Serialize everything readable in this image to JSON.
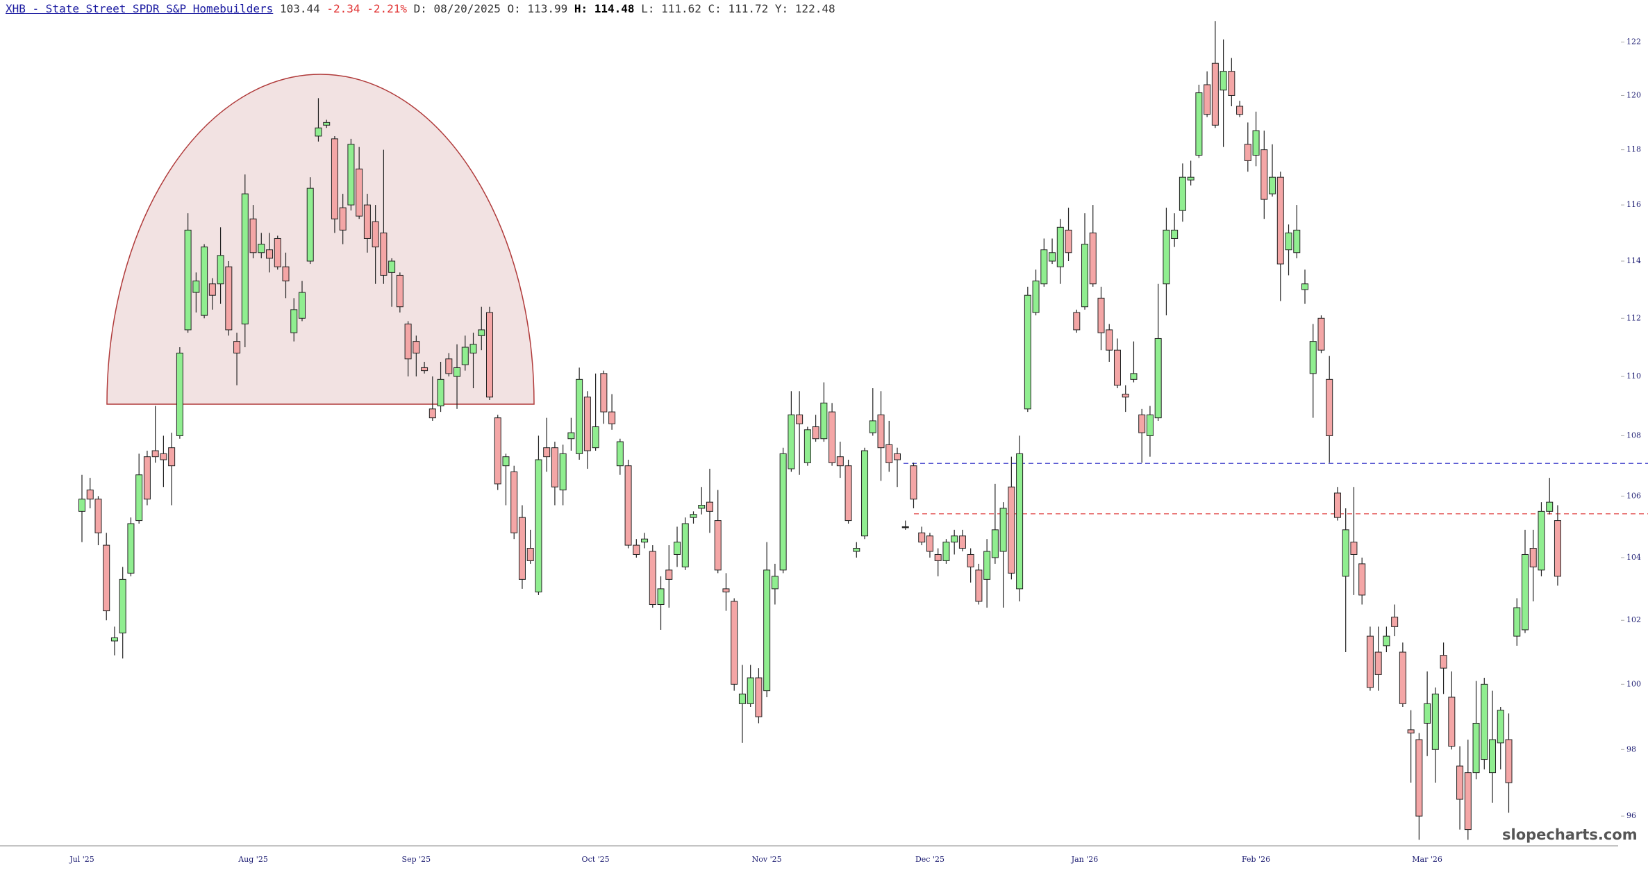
{
  "chart_data": {
    "type": "candlestick",
    "title": "XHB - State Street SPDR S&P Homebuilders",
    "quote": {
      "last": "103.44",
      "change": "-2.34",
      "change_pct": "-2.21%",
      "fields": [
        {
          "label": "D:",
          "value": "08/20/2025"
        },
        {
          "label": "O:",
          "value": "113.99"
        },
        {
          "label": "H:",
          "value": "114.48"
        },
        {
          "label": "L:",
          "value": "111.62"
        },
        {
          "label": "C:",
          "value": "111.72"
        },
        {
          "label": "Y:",
          "value": "122.48"
        }
      ]
    },
    "watermark": "slopecharts.com",
    "log_scale": true,
    "grid": false,
    "up_color": "#90ee90",
    "down_color": "#f4a6a6",
    "ylim": [
      95.12,
      123.6
    ],
    "yticks": [
      96,
      98,
      100,
      102,
      104,
      106,
      108,
      110,
      112,
      114,
      116,
      118,
      120,
      122
    ],
    "levels": [
      {
        "value": 107.08,
        "color": "#4444cc"
      },
      {
        "value": 105.42,
        "color": "#e04444"
      }
    ],
    "categories": [
      "Jul '25",
      null,
      null,
      null,
      null,
      null,
      null,
      null,
      null,
      null,
      null,
      null,
      null,
      null,
      null,
      null,
      null,
      null,
      null,
      null,
      null,
      "Aug '25",
      null,
      null,
      null,
      null,
      null,
      null,
      null,
      null,
      null,
      null,
      null,
      null,
      null,
      null,
      null,
      null,
      null,
      null,
      null,
      "Sep '25",
      null,
      null,
      null,
      null,
      null,
      null,
      null,
      null,
      null,
      null,
      null,
      null,
      null,
      null,
      null,
      null,
      null,
      null,
      null,
      null,
      null,
      "Oct '25",
      null,
      null,
      null,
      null,
      null,
      null,
      null,
      null,
      null,
      null,
      null,
      null,
      null,
      null,
      null,
      null,
      null,
      null,
      null,
      null,
      "Nov '25",
      null,
      null,
      null,
      null,
      null,
      null,
      null,
      null,
      null,
      null,
      null,
      null,
      null,
      null,
      null,
      null,
      null,
      null,
      null,
      "Dec '25",
      null,
      null,
      null,
      null,
      null,
      null,
      null,
      null,
      null,
      null,
      null,
      null,
      null,
      null,
      null,
      null,
      null,
      null,
      "Jan '26",
      null,
      null,
      null,
      null,
      null,
      null,
      null,
      null,
      null,
      null,
      null,
      null,
      null,
      null,
      null,
      null,
      null,
      null,
      null,
      null,
      "Feb '26",
      null,
      null,
      null,
      null,
      null,
      null,
      null,
      null,
      null,
      null,
      null,
      null,
      null,
      null,
      null,
      null,
      null,
      null,
      null,
      null,
      "Mar '26",
      null,
      null,
      null,
      null,
      null,
      null,
      null,
      null,
      null,
      null,
      null,
      null,
      null,
      null,
      null,
      null
    ],
    "open": [
      105.5,
      106.2,
      105.9,
      104.4,
      101.35,
      101.6,
      103.5,
      105.2,
      107.3,
      107.5,
      107.4,
      107.6,
      108.0,
      111.6,
      112.9,
      112.1,
      113.2,
      113.2,
      113.8,
      111.2,
      111.8,
      115.5,
      114.3,
      114.4,
      114.8,
      113.8,
      111.5,
      112.0,
      114.0,
      118.5,
      118.9,
      118.4,
      115.9,
      116.0,
      117.3,
      116.0,
      115.4,
      115.0,
      113.6,
      113.5,
      111.8,
      111.2,
      110.3,
      108.9,
      109.0,
      110.6,
      110.0,
      110.4,
      110.8,
      111.4,
      112.2,
      108.6,
      107.0,
      106.8,
      105.3,
      104.3,
      102.9,
      107.6,
      107.6,
      106.2,
      107.9,
      107.4,
      109.3,
      107.6,
      110.1,
      108.8,
      107.0,
      107.0,
      104.4,
      104.5,
      104.2,
      102.5,
      103.6,
      104.1,
      103.7,
      105.3,
      105.6,
      105.8,
      105.2,
      103.0,
      102.6,
      99.4,
      99.4,
      100.2,
      99.8,
      103.0,
      103.6,
      106.9,
      108.7,
      107.1,
      108.3,
      107.9,
      108.8,
      107.3,
      107.0,
      104.2,
      104.7,
      108.1,
      108.7,
      107.7,
      107.4,
      105.0,
      107.0,
      104.8,
      104.7,
      104.1,
      103.9,
      104.5,
      104.7,
      104.1,
      103.6,
      103.3,
      104.0,
      104.2,
      106.3,
      103.0,
      108.9,
      112.2,
      113.2,
      114.0,
      113.8,
      115.1,
      112.2,
      112.4,
      115.0,
      112.7,
      111.6,
      110.9,
      109.4,
      109.9,
      108.7,
      108.0,
      108.6,
      113.2,
      114.8,
      115.8,
      116.9,
      117.8,
      120.4,
      121.2,
      120.2,
      120.9,
      119.6,
      118.2,
      117.8,
      118.0,
      116.4,
      117.0,
      114.4,
      114.3,
      113.0,
      110.1,
      112.0,
      109.9,
      106.1,
      103.4,
      104.5,
      103.8,
      101.5,
      101.0,
      101.2,
      102.1,
      101.0,
      98.6,
      98.3,
      98.8,
      98.0,
      100.9,
      99.6,
      97.5,
      97.3,
      97.3,
      97.7,
      97.3,
      98.2,
      98.3,
      101.5,
      101.7,
      104.3,
      103.6,
      105.5,
      105.2
    ],
    "high": [
      106.7,
      106.6,
      106.0,
      104.8,
      101.8,
      103.7,
      105.3,
      107.4,
      107.5,
      109.0,
      108.0,
      108.1,
      111.0,
      115.7,
      113.6,
      114.6,
      113.4,
      115.2,
      114.0,
      111.5,
      117.1,
      116.0,
      115.0,
      115.0,
      114.9,
      114.3,
      112.7,
      113.3,
      117.0,
      119.9,
      119.1,
      118.5,
      116.4,
      118.4,
      118.1,
      116.4,
      116.0,
      118.0,
      114.1,
      113.6,
      111.9,
      111.4,
      110.5,
      110.0,
      110.5,
      110.8,
      111.1,
      111.4,
      111.5,
      112.4,
      112.4,
      108.7,
      107.4,
      107.0,
      105.7,
      104.9,
      108.0,
      108.6,
      107.8,
      107.7,
      108.6,
      110.3,
      109.5,
      110.1,
      110.2,
      109.4,
      107.9,
      107.2,
      104.6,
      104.8,
      104.4,
      103.4,
      104.4,
      105.0,
      105.3,
      105.5,
      106.3,
      106.9,
      106.2,
      103.5,
      102.7,
      100.6,
      100.6,
      100.5,
      104.5,
      103.8,
      107.6,
      109.5,
      109.5,
      108.3,
      108.7,
      109.8,
      109.1,
      107.8,
      107.2,
      104.5,
      107.6,
      109.6,
      109.5,
      108.5,
      107.6,
      105.2,
      107.1,
      105.0,
      104.8,
      104.3,
      104.6,
      104.9,
      104.9,
      104.3,
      103.8,
      104.6,
      106.4,
      105.8,
      107.3,
      108.0,
      113.1,
      113.7,
      114.8,
      114.8,
      115.5,
      115.9,
      112.3,
      115.7,
      116.0,
      113.1,
      111.8,
      111.3,
      109.7,
      111.2,
      108.9,
      109.0,
      113.2,
      115.9,
      115.7,
      117.5,
      117.6,
      120.4,
      120.9,
      122.8,
      122.1,
      121.4,
      119.8,
      119.0,
      119.4,
      118.7,
      118.2,
      117.2,
      115.3,
      116.0,
      113.7,
      111.8,
      112.1,
      110.7,
      106.3,
      105.6,
      106.3,
      104.0,
      101.8,
      101.8,
      101.8,
      102.5,
      101.3,
      99.2,
      98.5,
      100.4,
      99.9,
      101.3,
      100.4,
      98.1,
      98.3,
      100.1,
      100.2,
      99.8,
      99.3,
      99.1,
      102.7,
      104.9,
      104.9,
      105.8,
      106.6,
      105.7
    ],
    "low": [
      104.5,
      105.6,
      104.4,
      102.0,
      100.9,
      100.8,
      103.4,
      105.1,
      105.7,
      107.1,
      106.3,
      105.7,
      107.9,
      111.5,
      112.2,
      112.0,
      112.3,
      112.5,
      111.4,
      109.7,
      111.0,
      114.1,
      114.1,
      113.6,
      113.7,
      112.7,
      111.2,
      111.9,
      113.9,
      118.3,
      118.8,
      115.0,
      114.6,
      115.8,
      115.5,
      114.3,
      113.2,
      113.2,
      112.4,
      112.2,
      110.0,
      110.0,
      110.1,
      108.5,
      108.8,
      110.0,
      108.9,
      110.2,
      109.6,
      110.9,
      109.2,
      106.2,
      105.7,
      104.6,
      103.0,
      103.8,
      102.8,
      106.8,
      105.7,
      105.7,
      107.5,
      107.2,
      106.9,
      107.5,
      108.4,
      108.2,
      106.7,
      104.3,
      104.0,
      104.3,
      102.4,
      101.7,
      102.4,
      103.7,
      103.6,
      105.1,
      105.4,
      104.8,
      103.5,
      102.3,
      99.8,
      98.2,
      99.3,
      98.8,
      99.6,
      102.5,
      103.5,
      106.8,
      106.7,
      107.0,
      107.8,
      107.8,
      107.0,
      106.6,
      105.1,
      104.0,
      104.6,
      108.0,
      106.5,
      106.8,
      106.3,
      104.9,
      105.6,
      104.4,
      104.0,
      103.4,
      103.8,
      104.1,
      104.2,
      103.2,
      102.5,
      102.4,
      103.8,
      102.4,
      103.3,
      102.6,
      108.8,
      112.1,
      113.1,
      113.9,
      113.2,
      114.0,
      111.5,
      112.3,
      113.1,
      110.9,
      110.5,
      109.6,
      108.8,
      109.8,
      107.1,
      107.3,
      108.5,
      112.1,
      114.5,
      115.4,
      116.7,
      117.7,
      119.2,
      118.8,
      118.1,
      119.6,
      119.2,
      117.2,
      117.4,
      115.5,
      116.3,
      112.6,
      113.5,
      114.1,
      112.5,
      108.6,
      110.8,
      107.1,
      105.2,
      101.0,
      102.8,
      102.5,
      99.8,
      99.8,
      101.0,
      101.5,
      99.3,
      97.0,
      95.3,
      97.8,
      97.0,
      99.7,
      98.0,
      95.6,
      95.3,
      97.1,
      97.4,
      96.4,
      97.4,
      96.1,
      101.2,
      101.6,
      102.6,
      103.4,
      105.4,
      103.1
    ],
    "close": [
      105.9,
      105.9,
      104.8,
      102.3,
      101.45,
      103.3,
      105.1,
      106.7,
      105.9,
      107.3,
      107.2,
      107.0,
      110.8,
      115.1,
      113.3,
      114.5,
      112.8,
      114.2,
      111.6,
      110.8,
      116.4,
      114.3,
      114.6,
      114.1,
      113.8,
      113.3,
      112.3,
      112.9,
      116.6,
      118.8,
      119.0,
      115.5,
      115.1,
      118.2,
      115.6,
      114.8,
      114.5,
      113.5,
      114.0,
      112.4,
      110.6,
      110.8,
      110.2,
      108.6,
      109.9,
      110.1,
      110.3,
      111.0,
      111.1,
      111.6,
      109.3,
      106.4,
      107.3,
      104.8,
      103.3,
      103.9,
      107.2,
      107.3,
      106.3,
      107.4,
      108.1,
      109.9,
      107.5,
      108.3,
      108.8,
      108.4,
      107.8,
      104.4,
      104.1,
      104.6,
      102.5,
      103.0,
      103.3,
      104.5,
      105.1,
      105.4,
      105.7,
      105.5,
      103.6,
      102.9,
      100.0,
      99.7,
      100.2,
      99.0,
      103.6,
      103.4,
      107.4,
      108.7,
      108.4,
      108.2,
      107.9,
      109.1,
      107.1,
      107.0,
      105.2,
      104.3,
      107.5,
      108.5,
      107.6,
      107.1,
      107.2,
      105.0,
      105.9,
      104.5,
      104.2,
      103.9,
      104.5,
      104.7,
      104.3,
      103.7,
      102.6,
      104.2,
      104.9,
      105.6,
      103.5,
      107.4,
      112.8,
      113.3,
      114.4,
      114.3,
      115.2,
      114.3,
      111.6,
      114.6,
      113.2,
      111.5,
      110.9,
      109.7,
      109.3,
      110.1,
      108.1,
      108.7,
      111.3,
      115.1,
      115.1,
      117.0,
      117.0,
      120.1,
      119.3,
      118.9,
      120.9,
      120.0,
      119.3,
      117.6,
      118.7,
      116.2,
      117.0,
      113.9,
      115.0,
      115.1,
      113.2,
      111.2,
      110.9,
      108.0,
      105.3,
      104.9,
      104.1,
      102.8,
      99.9,
      100.3,
      101.5,
      101.8,
      99.4,
      98.5,
      96.0,
      99.4,
      99.7,
      100.5,
      98.1,
      96.5,
      95.6,
      98.8,
      100.0,
      98.3,
      99.2,
      97.0,
      102.4,
      104.1,
      103.7,
      105.5,
      105.8,
      103.4
    ]
  }
}
